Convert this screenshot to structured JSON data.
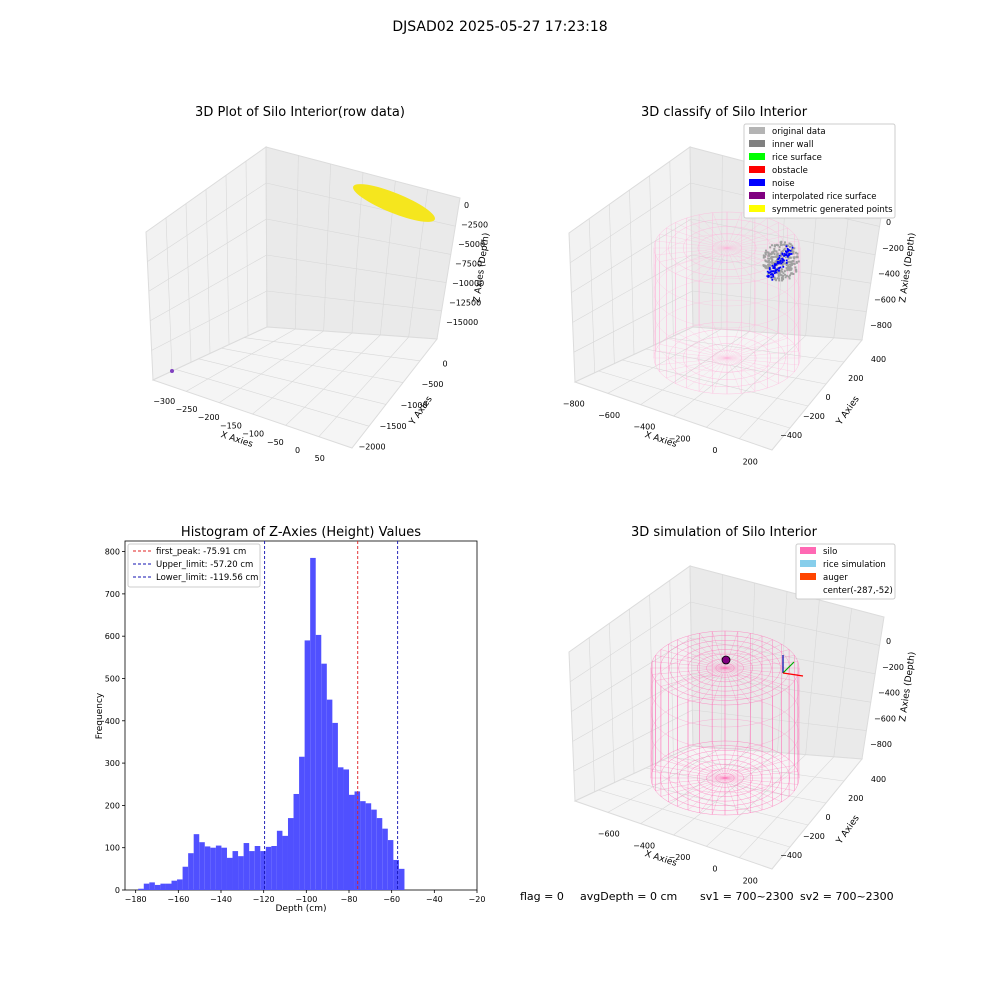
{
  "suptitle": "DJSAD02 2025-05-27 17:23:18",
  "colors": {
    "bars": "#5050ff",
    "first_peak_line": "#e02020",
    "limit_lines": "#1010b0",
    "silo": "#ff69b4",
    "silo_light": "#ffb0d8",
    "rice_simulation": "#87ceeb",
    "auger": "#ff4500",
    "raw_points": "#f5e61e",
    "raw_outlier": "#8040c0",
    "classified_gray": "#a0a0a0",
    "classified_blue": "#0000ff",
    "panel_gray": "#f2f2f2",
    "grid": "#d8d8d8"
  },
  "panels": {
    "raw": {
      "title": "3D Plot of Silo Interior(row data)",
      "xlabel": "X Axies",
      "ylabel": "Y Axies",
      "zlabel": "Z Axies (Depth)",
      "xticks": [
        "−300",
        "−250",
        "−200",
        "−150",
        "−100",
        "−50",
        "0",
        "50"
      ],
      "yticks": [
        "0",
        "−500",
        "−1000",
        "−1500",
        "−2000"
      ],
      "zticks": [
        "0",
        "−2500",
        "−5000",
        "−7500",
        "−10000",
        "−12500",
        "−15000"
      ]
    },
    "classify": {
      "title": "3D classify of Silo Interior",
      "xlabel": "X Axies",
      "ylabel": "Y Axies",
      "zlabel": "Z Axies (Depth)",
      "xticks": [
        "−800",
        "−600",
        "−400",
        "−200",
        "0",
        "200"
      ],
      "yticks": [
        "400",
        "200",
        "0",
        "−200",
        "−400"
      ],
      "zticks": [
        "0",
        "−200",
        "−400",
        "−600",
        "−800"
      ],
      "legend": [
        {
          "label": "original data",
          "color": "#b4b4b4"
        },
        {
          "label": "inner wall",
          "color": "#808080"
        },
        {
          "label": "rice surface",
          "color": "#00ff00"
        },
        {
          "label": "obstacle",
          "color": "#ff0000"
        },
        {
          "label": "noise",
          "color": "#0000ff"
        },
        {
          "label": "interpolated rice surface",
          "color": "#800080"
        },
        {
          "label": "symmetric generated points",
          "color": "#ffff00"
        }
      ]
    },
    "simulation": {
      "title": "3D simulation of Silo Interior",
      "xlabel": "X Axies",
      "ylabel": "Y Axies",
      "zlabel": "Z Axies (Depth)",
      "xticks": [
        "−600",
        "−400",
        "−200",
        "0",
        "200"
      ],
      "yticks": [
        "400",
        "200",
        "0",
        "−200",
        "−400"
      ],
      "zticks": [
        "0",
        "−200",
        "−400",
        "−600",
        "−800"
      ],
      "legend": [
        {
          "label": "silo",
          "color": "#ff69b4"
        },
        {
          "label": "rice simulation",
          "color": "#87ceeb"
        },
        {
          "label": "auger",
          "color": "#ff4500"
        },
        {
          "label": "center(-287,-52)",
          "color": ""
        }
      ]
    }
  },
  "chart_data": {
    "type": "bar",
    "title": "Histogram of Z-Axies (Height) Values",
    "xlabel": "Depth (cm)",
    "ylabel": "Frequency",
    "xlim": [
      -185,
      -20
    ],
    "ylim": [
      0,
      825
    ],
    "xticks": [
      -180,
      -160,
      -140,
      -120,
      -100,
      -80,
      -60,
      -40,
      -20
    ],
    "yticks": [
      0,
      100,
      200,
      300,
      400,
      500,
      600,
      700,
      800
    ],
    "bin_width": 2.6,
    "bin_start": -178.8,
    "values": [
      3,
      15,
      18,
      12,
      15,
      15,
      22,
      25,
      55,
      87,
      132,
      113,
      103,
      100,
      105,
      100,
      76,
      92,
      80,
      111,
      92,
      104,
      92,
      102,
      104,
      140,
      128,
      170,
      227,
      315,
      590,
      785,
      603,
      535,
      450,
      395,
      290,
      285,
      225,
      233,
      210,
      205,
      190,
      170,
      145,
      118,
      71,
      50
    ],
    "vlines": [
      {
        "label": "first_peak: -75.91 cm",
        "x": -75.91,
        "color": "#e02020"
      },
      {
        "label": "Upper_limit: -57.20 cm",
        "x": -57.2,
        "color": "#1010b0"
      },
      {
        "label": "Lower_limit: -119.56 cm",
        "x": -119.56,
        "color": "#1010b0"
      }
    ],
    "legend_position": "upper-left"
  },
  "status": {
    "flag": "flag = 0",
    "avg_depth": "avgDepth = 0 cm",
    "sv1": "sv1 = 700~2300",
    "sv2": "sv2 = 700~2300"
  }
}
